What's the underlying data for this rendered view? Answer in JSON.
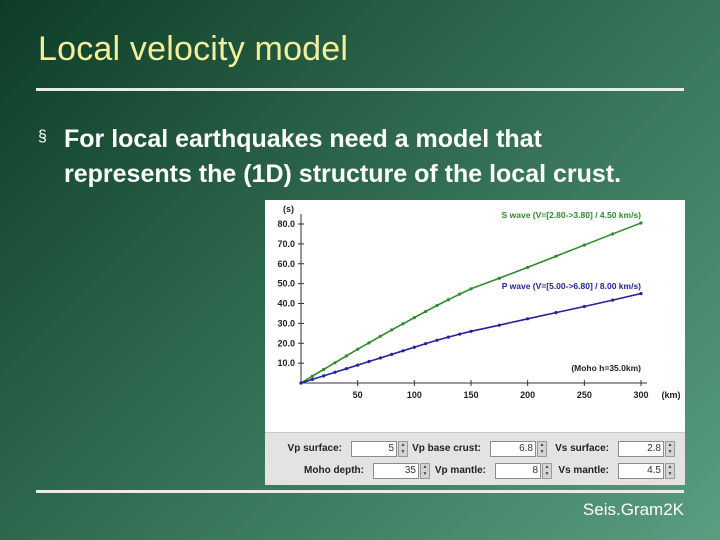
{
  "slide": {
    "title": "Local velocity model",
    "bullet_marker": "§",
    "bullet": "For local earthquakes need a model that represents the (1D) structure of the local crust.",
    "footer": "Seis.Gram2K"
  },
  "chart_data": {
    "type": "line",
    "ylabel": "(s)",
    "xlabel": "(km)",
    "xlim": [
      0,
      300
    ],
    "ylim": [
      0,
      80
    ],
    "x_ticks": [
      "50",
      "100",
      "150",
      "200",
      "250",
      "300"
    ],
    "y_ticks": [
      "10.0",
      "20.0",
      "30.0",
      "40.0",
      "50.0",
      "60.0",
      "70.0",
      "80.0"
    ],
    "annotation": "(Moho h=35.0km)",
    "series": [
      {
        "name": "S wave (V=[2.80->3.80] / 4.50 km/s)",
        "color": "#2e8b2e",
        "x": [
          0,
          10,
          20,
          30,
          40,
          50,
          60,
          70,
          80,
          90,
          100,
          110,
          120,
          130,
          140,
          150,
          175,
          200,
          225,
          250,
          275,
          300
        ],
        "y": [
          0,
          3.4,
          6.8,
          10.2,
          13.6,
          17,
          20.2,
          23.5,
          26.7,
          29.8,
          32.9,
          36,
          39,
          41.9,
          44.7,
          47.4,
          52.7,
          58.2,
          63.8,
          69.4,
          75,
          80.5
        ]
      },
      {
        "name": "P wave (V=[5.00->6.80] / 8.00 km/s)",
        "color": "#23239a",
        "x": [
          0,
          10,
          20,
          30,
          40,
          50,
          60,
          70,
          80,
          90,
          100,
          110,
          120,
          130,
          140,
          150,
          175,
          200,
          225,
          250,
          275,
          300
        ],
        "y": [
          0,
          1.8,
          3.6,
          5.4,
          7.2,
          9,
          10.8,
          12.6,
          14.4,
          16.2,
          18,
          19.8,
          21.5,
          23.1,
          24.6,
          26,
          29.1,
          32.3,
          35.4,
          38.5,
          41.7,
          45
        ]
      }
    ]
  },
  "controls": [
    {
      "label": "Vp surface:",
      "value": "5"
    },
    {
      "label": "Vp base crust:",
      "value": "6.8"
    },
    {
      "label": "Vs surface:",
      "value": "2.8"
    },
    {
      "label": "Moho depth:",
      "value": "35"
    },
    {
      "label": "Vp mantle:",
      "value": "8"
    },
    {
      "label": "Vs mantle:",
      "value": "4.5"
    }
  ]
}
